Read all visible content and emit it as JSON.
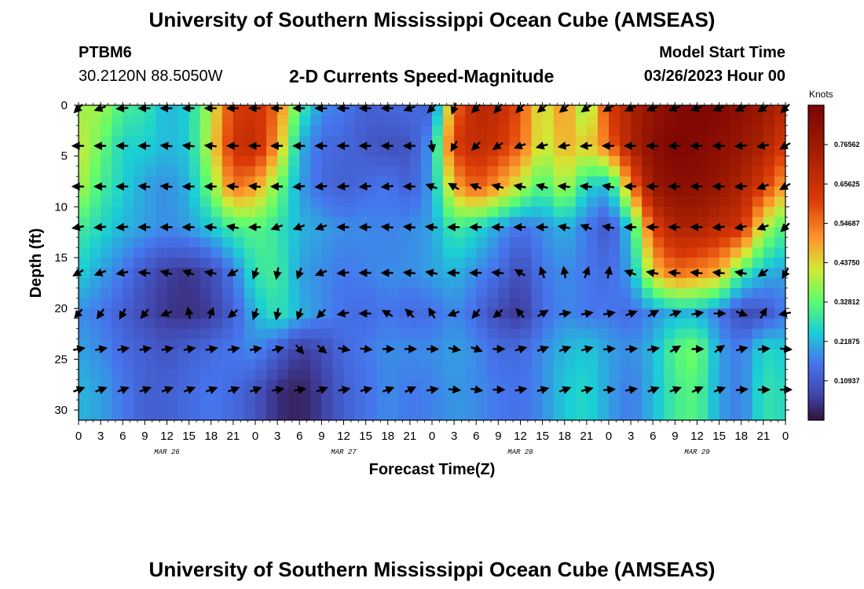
{
  "page": {
    "title": "University of Southern Mississippi Ocean Cube (AMSEAS)",
    "station": "PTBM6",
    "coords": "30.2120N  88.5050W",
    "subtitle": "2-D Currents Speed-Magnitude",
    "model_label": "Model Start Time",
    "model_time": "03/26/2023 Hour 00",
    "footer_title": "University of Southern Mississippi Ocean Cube (AMSEAS)"
  },
  "chart_data": {
    "type": "heatmap",
    "title": "2-D Currents Speed-Magnitude",
    "xlabel": "Forecast Time(Z)",
    "ylabel": "Depth (ft)",
    "xlim": [
      0,
      96
    ],
    "ylim": [
      0,
      31
    ],
    "x_tick_values": [
      0,
      3,
      6,
      9,
      12,
      15,
      18,
      21,
      24,
      27,
      30,
      33,
      36,
      39,
      42,
      45,
      48,
      51,
      54,
      57,
      60,
      63,
      66,
      69,
      72,
      75,
      78,
      81,
      84,
      87,
      90,
      93,
      96
    ],
    "x_tick_labels": [
      "0",
      "3",
      "6",
      "9",
      "12",
      "15",
      "18",
      "21",
      "0",
      "3",
      "6",
      "9",
      "12",
      "15",
      "18",
      "21",
      "0",
      "3",
      "6",
      "9",
      "12",
      "15",
      "18",
      "21",
      "0",
      "3",
      "6",
      "9",
      "12",
      "15",
      "18",
      "21",
      "0"
    ],
    "date_labels": [
      {
        "hour": 12,
        "text": "MAR 26"
      },
      {
        "hour": 36,
        "text": "MAR 27"
      },
      {
        "hour": 60,
        "text": "MAR 28"
      },
      {
        "hour": 84,
        "text": "MAR 29"
      }
    ],
    "y_ticks": [
      0,
      5,
      10,
      15,
      20,
      25,
      30
    ],
    "colorbar": {
      "title": "Knots",
      "min": 0,
      "max": 0.875,
      "tick_values": [
        0.10937,
        0.21875,
        0.32812,
        0.4375,
        0.54687,
        0.65625,
        0.76562
      ],
      "tick_labels": [
        "0.10937",
        "0.21875",
        "0.32812",
        "0.43750",
        "0.54687",
        "0.65625",
        "0.76562"
      ]
    },
    "depths": [
      0.3,
      4,
      8,
      12,
      16.5,
      20.5,
      24,
      28
    ],
    "arrow_times": [
      0,
      3,
      6,
      9,
      12,
      15,
      18,
      21,
      24,
      27,
      30,
      33,
      36,
      39,
      42,
      45,
      48,
      51,
      54,
      57,
      60,
      63,
      66,
      69,
      72,
      75,
      78,
      81,
      84,
      87,
      90,
      93,
      96
    ],
    "speed_knots": [
      [
        0.38,
        0.38,
        0.3,
        0.28,
        0.22,
        0.25,
        0.4,
        0.62,
        0.65,
        0.55,
        0.3,
        0.18,
        0.16,
        0.12,
        0.13,
        0.14,
        0.12,
        0.55,
        0.7,
        0.68,
        0.58,
        0.4,
        0.52,
        0.35,
        0.62,
        0.72,
        0.8,
        0.84,
        0.86,
        0.85,
        0.82,
        0.76,
        0.7
      ],
      [
        0.42,
        0.34,
        0.25,
        0.25,
        0.22,
        0.24,
        0.42,
        0.65,
        0.68,
        0.5,
        0.22,
        0.14,
        0.13,
        0.11,
        0.09,
        0.1,
        0.2,
        0.62,
        0.68,
        0.64,
        0.56,
        0.4,
        0.48,
        0.44,
        0.55,
        0.72,
        0.82,
        0.86,
        0.85,
        0.82,
        0.78,
        0.72,
        0.62
      ],
      [
        0.4,
        0.3,
        0.25,
        0.2,
        0.18,
        0.22,
        0.35,
        0.55,
        0.5,
        0.35,
        0.2,
        0.14,
        0.12,
        0.14,
        0.16,
        0.12,
        0.2,
        0.48,
        0.58,
        0.5,
        0.4,
        0.3,
        0.4,
        0.25,
        0.22,
        0.52,
        0.78,
        0.82,
        0.82,
        0.78,
        0.72,
        0.62,
        0.48
      ],
      [
        0.3,
        0.26,
        0.22,
        0.2,
        0.18,
        0.2,
        0.24,
        0.3,
        0.32,
        0.28,
        0.22,
        0.2,
        0.18,
        0.18,
        0.17,
        0.18,
        0.2,
        0.3,
        0.26,
        0.2,
        0.15,
        0.18,
        0.22,
        0.16,
        0.1,
        0.25,
        0.6,
        0.72,
        0.72,
        0.68,
        0.65,
        0.4,
        0.3
      ],
      [
        0.25,
        0.2,
        0.16,
        0.1,
        0.06,
        0.05,
        0.08,
        0.16,
        0.28,
        0.3,
        0.2,
        0.18,
        0.16,
        0.17,
        0.18,
        0.18,
        0.2,
        0.22,
        0.18,
        0.14,
        0.08,
        0.16,
        0.18,
        0.16,
        0.14,
        0.2,
        0.45,
        0.55,
        0.52,
        0.48,
        0.3,
        0.22,
        0.2
      ],
      [
        0.18,
        0.16,
        0.12,
        0.08,
        0.05,
        0.04,
        0.06,
        0.12,
        0.22,
        0.28,
        0.22,
        0.18,
        0.15,
        0.14,
        0.16,
        0.14,
        0.15,
        0.18,
        0.14,
        0.08,
        0.05,
        0.14,
        0.18,
        0.16,
        0.16,
        0.14,
        0.18,
        0.22,
        0.22,
        0.16,
        0.08,
        0.1,
        0.16
      ],
      [
        0.2,
        0.18,
        0.14,
        0.12,
        0.1,
        0.12,
        0.14,
        0.16,
        0.18,
        0.12,
        0.06,
        0.08,
        0.14,
        0.16,
        0.18,
        0.18,
        0.18,
        0.2,
        0.18,
        0.14,
        0.14,
        0.18,
        0.22,
        0.24,
        0.2,
        0.18,
        0.22,
        0.32,
        0.35,
        0.2,
        0.16,
        0.26,
        0.24
      ],
      [
        0.22,
        0.2,
        0.16,
        0.12,
        0.12,
        0.14,
        0.16,
        0.14,
        0.1,
        0.04,
        0.02,
        0.06,
        0.12,
        0.15,
        0.18,
        0.16,
        0.17,
        0.19,
        0.18,
        0.16,
        0.15,
        0.18,
        0.24,
        0.26,
        0.2,
        0.16,
        0.22,
        0.3,
        0.32,
        0.2,
        0.16,
        0.28,
        0.26
      ]
    ],
    "direction_deg": [
      [
        225,
        250,
        265,
        270,
        270,
        270,
        270,
        270,
        270,
        270,
        270,
        270,
        270,
        270,
        270,
        250,
        225,
        200,
        225,
        220,
        225,
        230,
        230,
        235,
        240,
        245,
        250,
        250,
        250,
        250,
        245,
        235,
        225
      ],
      [
        270,
        270,
        270,
        270,
        275,
        275,
        275,
        270,
        270,
        270,
        270,
        270,
        270,
        270,
        270,
        270,
        170,
        210,
        225,
        235,
        250,
        255,
        260,
        265,
        270,
        270,
        270,
        270,
        270,
        270,
        265,
        260,
        240
      ],
      [
        270,
        270,
        270,
        275,
        275,
        270,
        270,
        275,
        275,
        270,
        265,
        265,
        265,
        265,
        265,
        270,
        290,
        300,
        290,
        285,
        280,
        285,
        275,
        275,
        280,
        270,
        270,
        270,
        270,
        270,
        265,
        250,
        240
      ],
      [
        260,
        265,
        265,
        270,
        270,
        270,
        275,
        280,
        270,
        250,
        250,
        250,
        270,
        270,
        275,
        275,
        275,
        270,
        270,
        270,
        270,
        270,
        280,
        290,
        280,
        270,
        270,
        270,
        270,
        265,
        260,
        250,
        225
      ],
      [
        240,
        250,
        260,
        275,
        285,
        290,
        280,
        240,
        200,
        190,
        200,
        250,
        265,
        270,
        270,
        275,
        280,
        270,
        270,
        275,
        300,
        340,
        350,
        20,
        10,
        290,
        280,
        275,
        275,
        275,
        280,
        235,
        210
      ],
      [
        220,
        215,
        210,
        220,
        250,
        350,
        20,
        230,
        200,
        190,
        200,
        225,
        260,
        270,
        300,
        315,
        330,
        250,
        220,
        230,
        320,
        60,
        80,
        80,
        80,
        70,
        60,
        70,
        80,
        90,
        110,
        30,
        260
      ],
      [
        80,
        80,
        80,
        80,
        80,
        80,
        80,
        80,
        80,
        75,
        140,
        130,
        100,
        95,
        90,
        90,
        90,
        100,
        110,
        90,
        75,
        70,
        70,
        75,
        85,
        85,
        80,
        60,
        90,
        55,
        75,
        85,
        95
      ],
      [
        70,
        70,
        70,
        70,
        70,
        70,
        70,
        70,
        70,
        80,
        80,
        70,
        80,
        75,
        70,
        65,
        80,
        95,
        100,
        90,
        80,
        75,
        70,
        75,
        85,
        80,
        70,
        70,
        65,
        70,
        85,
        90,
        90
      ]
    ]
  }
}
